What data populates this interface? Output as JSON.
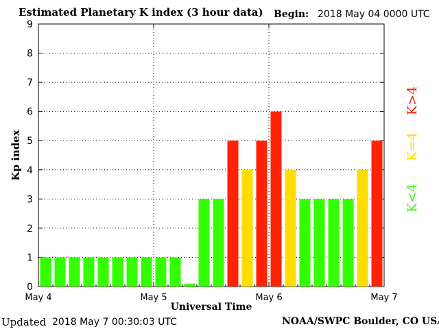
{
  "header": {
    "title": "Estimated Planetary K index (3 hour data)",
    "begin_label": "Begin:",
    "begin_value": "2018 May 04 0000 UTC"
  },
  "footer": {
    "updated_label": "Updated",
    "updated_value": "2018 May  7 00:30:03 UTC",
    "source": "NOAA/SWPC Boulder, CO USA"
  },
  "legend": {
    "low": "K<4",
    "equal": "K=4",
    "high": "K>4"
  },
  "colors": {
    "low": "#33ff00",
    "equal": "#ffdd00",
    "high": "#ff2200"
  },
  "chart_data": {
    "type": "bar",
    "ylabel": "Kp index",
    "xlabel": "Universal Time",
    "ylim": [
      0,
      9
    ],
    "yticks": [
      "0",
      "1",
      "2",
      "3",
      "4",
      "5",
      "6",
      "7",
      "8",
      "9"
    ],
    "xtick_labels": [
      "May 4",
      "May 5",
      "May 6",
      "May 7"
    ],
    "grid": "dotted",
    "values": [
      1,
      1,
      1,
      1,
      1,
      1,
      1,
      1,
      1,
      1,
      0.1,
      3,
      3,
      5,
      4,
      5,
      6,
      4,
      3,
      3,
      3,
      3,
      4,
      5
    ]
  }
}
